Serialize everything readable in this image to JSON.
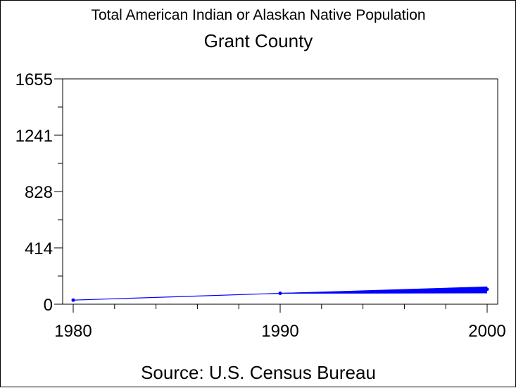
{
  "chart_data": {
    "type": "line",
    "title": "Total American Indian or Alaskan Native Population",
    "subtitle": "Grant County",
    "footnote": "Source: U.S. Census Bureau",
    "x": [
      1980,
      1990,
      2000
    ],
    "xticks": [
      "1980",
      "1990",
      "2000"
    ],
    "xlim": [
      1980,
      2000
    ],
    "ylim": [
      0,
      1655
    ],
    "yticks": [
      "0",
      "414",
      "828",
      "1241",
      "1655"
    ],
    "yticks_values": [
      0,
      414,
      828,
      1241,
      1655
    ],
    "series": [
      {
        "values": [
          30,
          80,
          110
        ]
      }
    ],
    "band_2000": [
      80,
      130
    ],
    "colors": {
      "line": "#0000ff",
      "axis": "#000000"
    },
    "grid": false
  }
}
